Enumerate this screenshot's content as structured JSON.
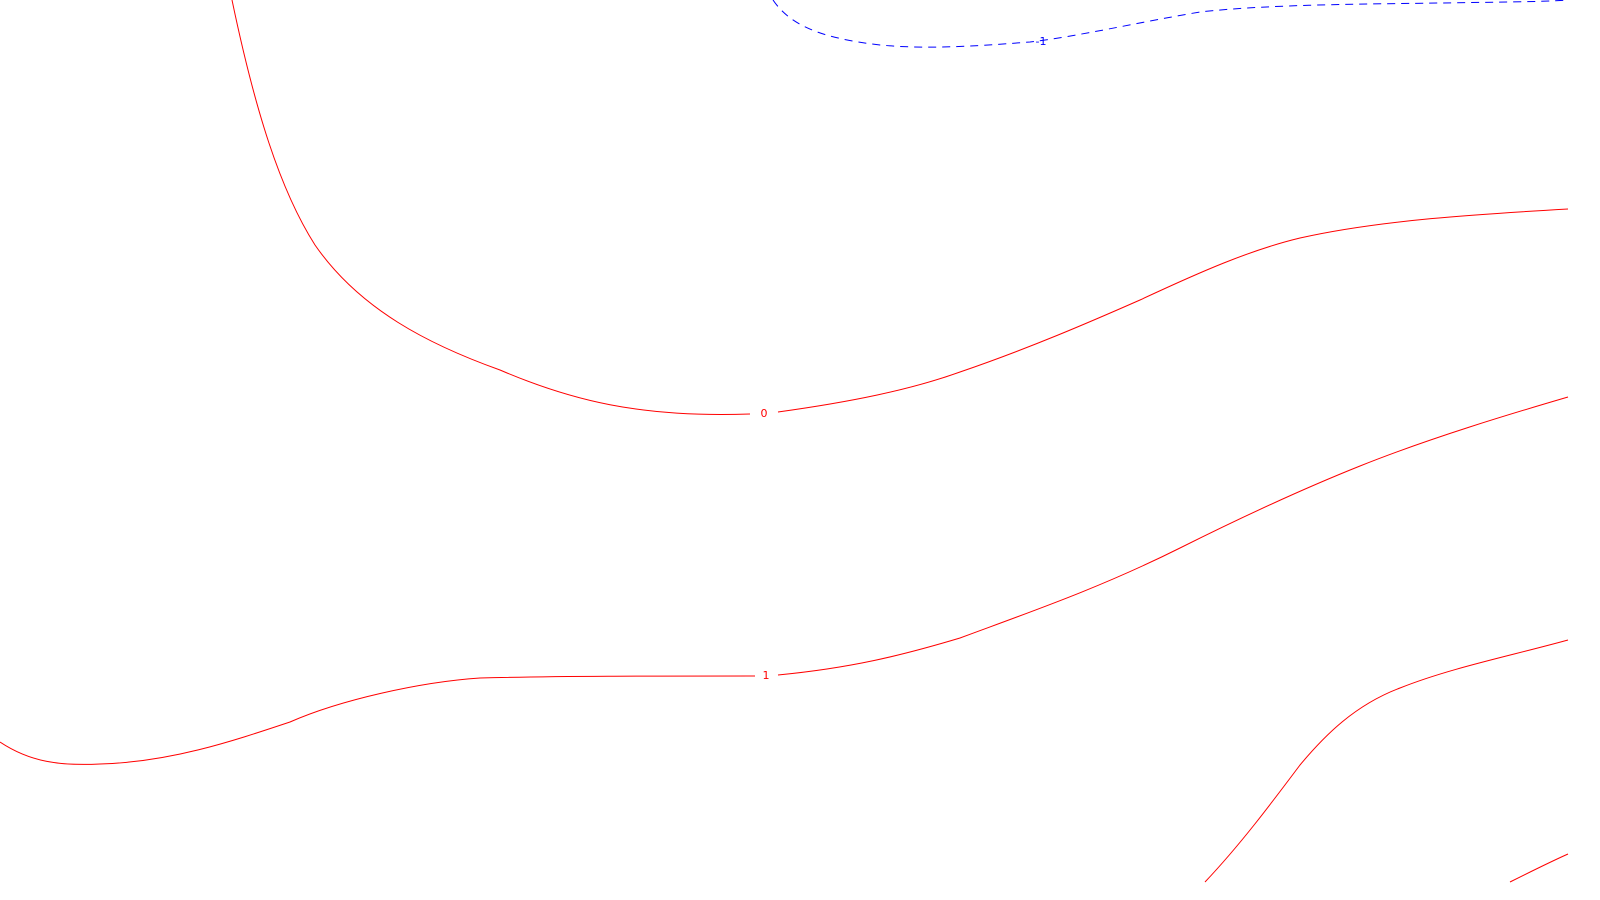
{
  "colors": {
    "positive": "#ff0000",
    "negative": "#0000ff",
    "background": "#ffffff"
  },
  "contours": [
    {
      "id": "contour-neg1-dashed",
      "label": "-1",
      "style": "dashed",
      "color": "negative"
    },
    {
      "id": "contour-0",
      "label": "0",
      "style": "solid",
      "color": "positive"
    },
    {
      "id": "contour-1",
      "label": "1",
      "style": "solid",
      "color": "positive"
    },
    {
      "id": "contour-unlabeled-a",
      "label": "",
      "style": "solid",
      "color": "positive"
    },
    {
      "id": "contour-unlabeled-b",
      "label": "",
      "style": "solid",
      "color": "positive"
    }
  ]
}
